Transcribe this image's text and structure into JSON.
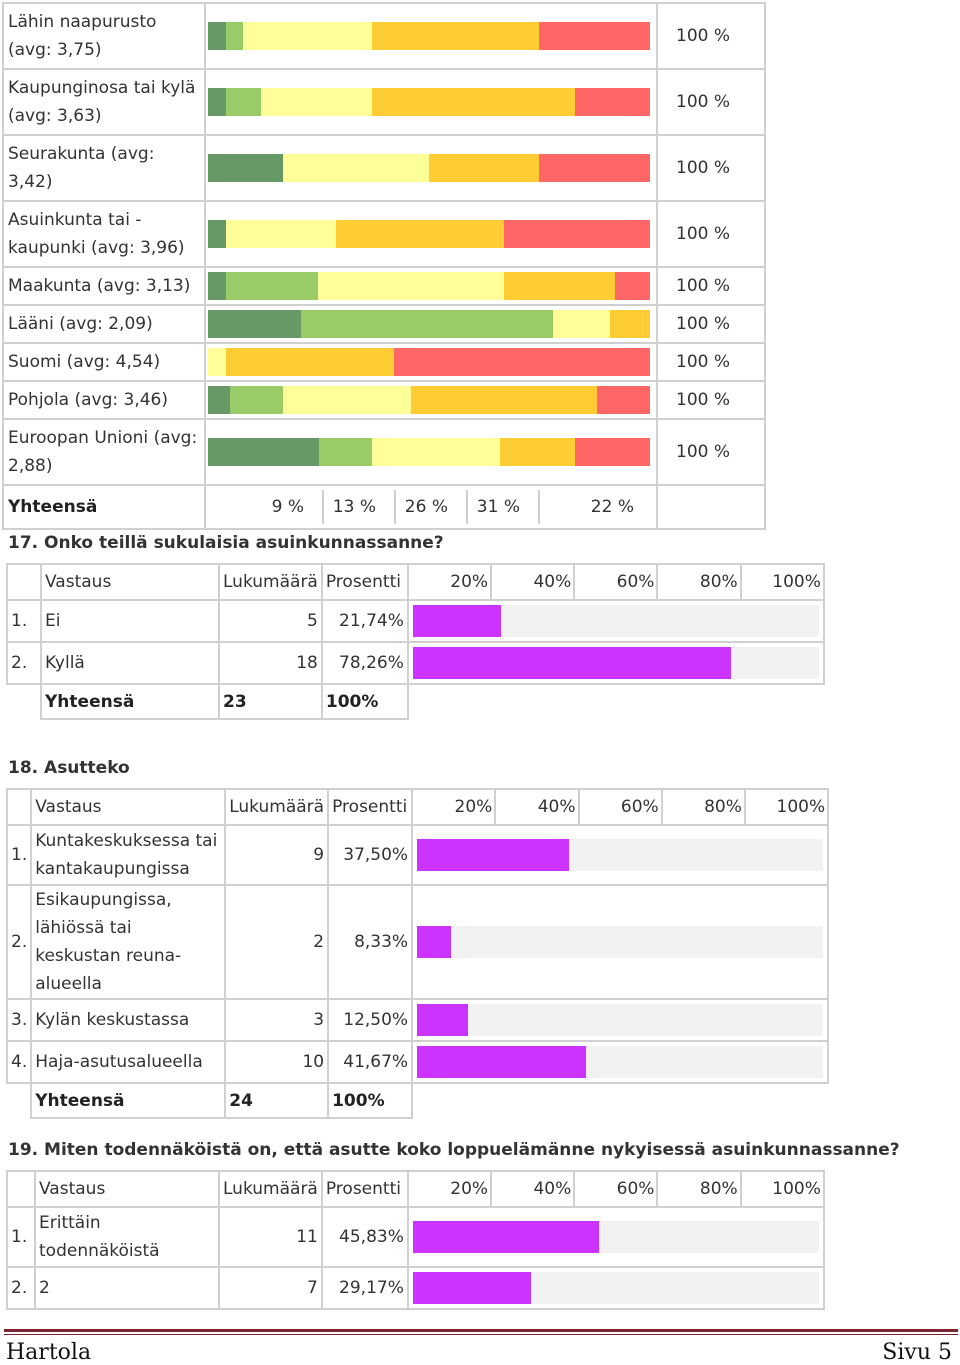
{
  "colors": {
    "c1": "#669966",
    "c2": "#99cc66",
    "c3": "#ffff99",
    "c4": "#ffcc33",
    "c5": "#ff6666",
    "bar": "#cc33ff",
    "track": "#f2f2f2"
  },
  "stack": {
    "rows": [
      {
        "label": "Lähin naapurusto (avg: 3,75)",
        "pct": "100 %",
        "segments": [
          0.04,
          0.04,
          0.29,
          0.38,
          0.25
        ]
      },
      {
        "label": "Kaupunginosa tai kylä (avg: 3,63)",
        "pct": "100 %",
        "segments": [
          0.04,
          0.08,
          0.25,
          0.46,
          0.17
        ]
      },
      {
        "label": "Seurakunta (avg: 3,42)",
        "pct": "100 %",
        "segments": [
          0.17,
          0.0,
          0.33,
          0.25,
          0.25
        ]
      },
      {
        "label": "Asuinkunta tai -kaupunki (avg: 3,96)",
        "pct": "100 %",
        "segments": [
          0.04,
          0.0,
          0.25,
          0.38,
          0.33
        ]
      },
      {
        "label": "Maakunta (avg: 3,13)",
        "pct": "100 %",
        "segments": [
          0.04,
          0.21,
          0.42,
          0.25,
          0.08
        ]
      },
      {
        "label": "Lääni (avg: 2,09)",
        "pct": "100 %",
        "segments": [
          0.21,
          0.57,
          0.13,
          0.09,
          0.0
        ]
      },
      {
        "label": "Suomi (avg: 4,54)",
        "pct": "100 %",
        "segments": [
          0.0,
          0.0,
          0.04,
          0.38,
          0.58
        ]
      },
      {
        "label": "Pohjola (avg: 3,46)",
        "pct": "100 %",
        "segments": [
          0.05,
          0.12,
          0.29,
          0.42,
          0.12
        ]
      },
      {
        "label": "Euroopan Unioni (avg: 2,88)",
        "pct": "100 %",
        "segments": [
          0.25,
          0.12,
          0.29,
          0.17,
          0.17
        ]
      }
    ],
    "total_label": "Yhteensä",
    "totals": [
      "9 %",
      "13 %",
      "26 %",
      "31 %",
      "22 %"
    ]
  },
  "q17": {
    "heading": "17. Onko teillä sukulaisia asuinkunnassanne?",
    "header": {
      "vastaus": "Vastaus",
      "lukumaara": "Lukumäärä",
      "prosentti": "Prosentti",
      "scale": [
        "20%",
        "40%",
        "60%",
        "80%",
        "100%"
      ]
    },
    "rows": [
      {
        "num": "1.",
        "label": "Ei",
        "count": "5",
        "pct": "21,74%",
        "value": 21.74
      },
      {
        "num": "2.",
        "label": "Kyllä",
        "count": "18",
        "pct": "78,26%",
        "value": 78.26
      }
    ],
    "total": {
      "label": "Yhteensä",
      "count": "23",
      "pct": "100%"
    }
  },
  "q18": {
    "heading": "18. Asutteko",
    "header": {
      "vastaus": "Vastaus",
      "lukumaara": "Lukumäärä",
      "prosentti": "Prosentti",
      "scale": [
        "20%",
        "40%",
        "60%",
        "80%",
        "100%"
      ]
    },
    "rows": [
      {
        "num": "1.",
        "label": "Kuntakeskuksessa tai kantakaupungissa",
        "count": "9",
        "pct": "37,50%",
        "value": 37.5
      },
      {
        "num": "2.",
        "label": "Esikaupungissa, lähiössä tai keskustan reuna-alueella",
        "count": "2",
        "pct": "8,33%",
        "value": 8.33
      },
      {
        "num": "3.",
        "label": "Kylän keskustassa",
        "count": "3",
        "pct": "12,50%",
        "value": 12.5
      },
      {
        "num": "4.",
        "label": "Haja-asutusalueella",
        "count": "10",
        "pct": "41,67%",
        "value": 41.67
      }
    ],
    "total": {
      "label": "Yhteensä",
      "count": "24",
      "pct": "100%"
    }
  },
  "q19": {
    "heading": "19. Miten todennäköistä on, että asutte koko loppuelämänne nykyisessä asuinkunnassanne?",
    "header": {
      "vastaus": "Vastaus",
      "lukumaara": "Lukumäärä",
      "prosentti": "Prosentti",
      "scale": [
        "20%",
        "40%",
        "60%",
        "80%",
        "100%"
      ]
    },
    "rows": [
      {
        "num": "1.",
        "label": "Erittäin todennäköistä",
        "count": "11",
        "pct": "45,83%",
        "value": 45.83
      },
      {
        "num": "2.",
        "label": "2",
        "count": "7",
        "pct": "29,17%",
        "value": 29.17
      }
    ]
  },
  "footer": {
    "left": "Hartola",
    "right": "Sivu 5"
  }
}
